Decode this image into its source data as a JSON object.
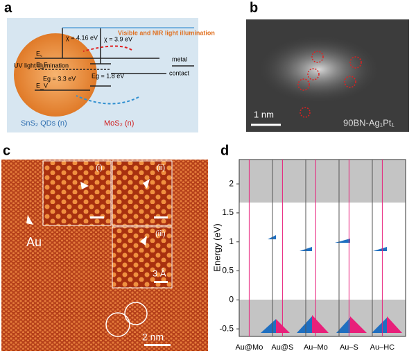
{
  "panel_a": {
    "label": "a",
    "uv": "UV light illumination",
    "vis": "Visible and NIR light illumination",
    "chi1": "χ = 4.16 eV",
    "chi2": "χ = 3.9 eV",
    "ec": "E꜀",
    "ef": "E_F",
    "ev": "E_V",
    "eg1": "Eg = 3.3 eV",
    "eg2": "Eg = 1.8 eV",
    "metal": "metal",
    "contact": "contact",
    "sns2": "SnS₂ QDs (n)",
    "mos2": "MoS₂ (n)"
  },
  "panel_b": {
    "label": "b",
    "scale": "1 nm",
    "sample": "90BN-Ag₁Pt₁"
  },
  "panel_c": {
    "label": "c",
    "au": "Au",
    "inset1": "(i)",
    "inset2": "(ii)",
    "inset3": "(iii)",
    "scale_small": "3 Å",
    "scale": "2 nm"
  },
  "chart_data": {
    "type": "dos",
    "label": "d",
    "y_label": "Energy (eV)",
    "categories": [
      "Au@Mo",
      "Au@S",
      "Au–Mo",
      "Au–S",
      "Au–HC"
    ],
    "ylim": [
      -0.63,
      2.42
    ],
    "yticks": [
      -0.5,
      0,
      0.5,
      1,
      1.5,
      2
    ]
  }
}
